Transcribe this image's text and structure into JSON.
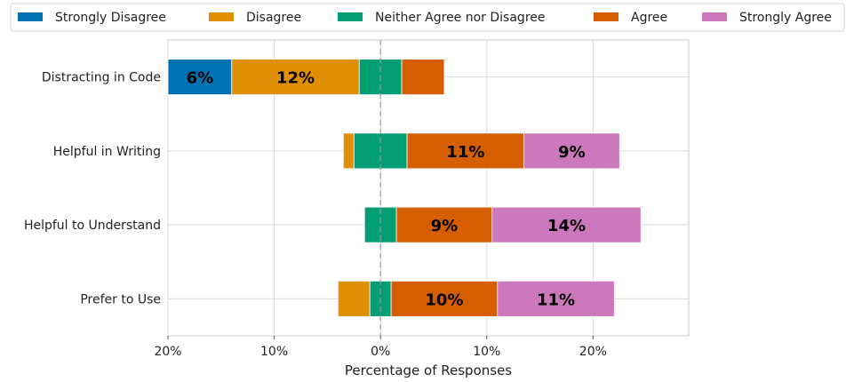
{
  "chart_data": {
    "type": "bar",
    "orientation": "horizontal",
    "stacked": "diverging",
    "xlabel": "Percentage of Responses",
    "xlim": [
      -20,
      29
    ],
    "x_ticks": [
      -20,
      -10,
      0,
      10,
      20
    ],
    "x_tick_labels": [
      "20%",
      "10%",
      "0%",
      "10%",
      "20%"
    ],
    "categories": [
      "Distracting in Code",
      "Helpful in Writing",
      "Helpful to Understand",
      "Prefer to Use"
    ],
    "grid": true,
    "legend_position": "top",
    "center_line": "dashed at 0",
    "series": [
      {
        "name": "Strongly Disagree",
        "color": "#0173B2",
        "values": [
          6,
          0,
          0,
          0
        ],
        "labels": [
          "6%",
          "",
          "",
          ""
        ]
      },
      {
        "name": "Disagree",
        "color": "#DE8F05",
        "values": [
          12,
          1,
          0,
          3
        ],
        "labels": [
          "12%",
          "",
          "",
          ""
        ]
      },
      {
        "name": "Neither Agree nor Disagree",
        "color": "#029E73",
        "values": [
          4,
          5,
          3,
          2
        ],
        "labels": [
          "",
          "",
          "",
          ""
        ]
      },
      {
        "name": "Agree",
        "color": "#D55E00",
        "values": [
          4,
          11,
          9,
          10
        ],
        "labels": [
          "",
          "11%",
          "9%",
          "10%"
        ]
      },
      {
        "name": "Strongly Agree",
        "color": "#CC78BC",
        "values": [
          0,
          9,
          14,
          11
        ],
        "labels": [
          "",
          "9%",
          "14%",
          "11%"
        ]
      }
    ]
  }
}
